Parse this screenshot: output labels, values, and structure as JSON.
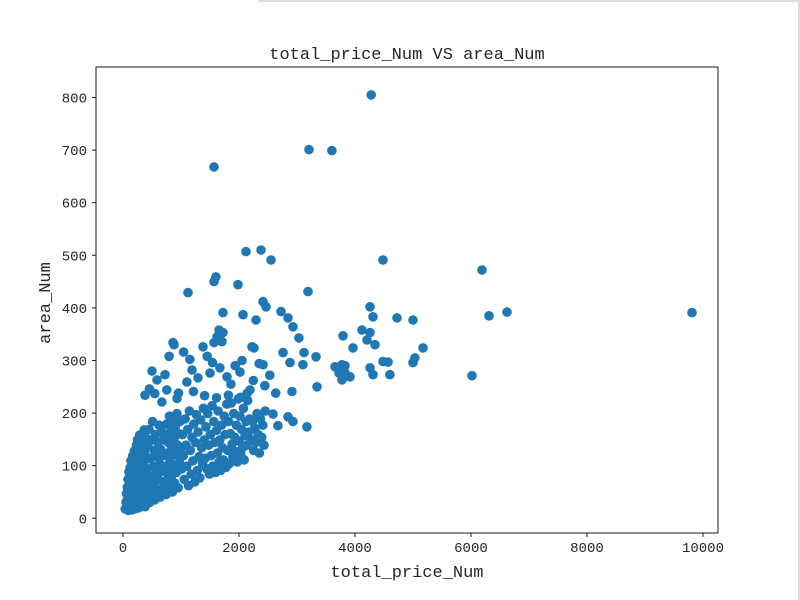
{
  "page": {
    "background": "#ffffff",
    "panel_border_color": "#dcdcdc"
  },
  "chart_data": {
    "type": "scatter",
    "title": "total_price_Num VS area_Num",
    "xlabel": "total_price_Num",
    "ylabel": "area_Num",
    "xlim": [
      -465,
      10259
    ],
    "ylim": [
      -28,
      858
    ],
    "x_ticks": [
      0,
      2000,
      4000,
      6000,
      8000,
      10000
    ],
    "y_ticks": [
      0,
      100,
      200,
      300,
      400,
      500,
      600,
      700,
      800
    ],
    "grid": false,
    "legend": "none",
    "marker_color": "#1f77b4",
    "marker_radius_px": 4.8,
    "axis_color": "#1a1a1a",
    "points": [
      [
        38,
        18
      ],
      [
        52,
        31
      ],
      [
        61,
        47
      ],
      [
        68,
        22
      ],
      [
        74,
        59
      ],
      [
        81,
        36
      ],
      [
        86,
        74
      ],
      [
        92,
        15
      ],
      [
        97,
        51
      ],
      [
        103,
        88
      ],
      [
        106,
        27
      ],
      [
        112,
        64
      ],
      [
        117,
        41
      ],
      [
        122,
        96
      ],
      [
        126,
        20
      ],
      [
        131,
        56
      ],
      [
        136,
        109
      ],
      [
        141,
        33
      ],
      [
        147,
        77
      ],
      [
        152,
        16
      ],
      [
        156,
        91
      ],
      [
        161,
        44
      ],
      [
        166,
        118
      ],
      [
        171,
        62
      ],
      [
        176,
        25
      ],
      [
        181,
        99
      ],
      [
        186,
        38
      ],
      [
        191,
        81
      ],
      [
        196,
        128
      ],
      [
        201,
        52
      ],
      [
        206,
        18
      ],
      [
        211,
        69
      ],
      [
        216,
        114
      ],
      [
        221,
        42
      ],
      [
        226,
        89
      ],
      [
        231,
        139
      ],
      [
        236,
        24
      ],
      [
        241,
        61
      ],
      [
        246,
        104
      ],
      [
        251,
        149
      ],
      [
        256,
        35
      ],
      [
        261,
        82
      ],
      [
        266,
        124
      ],
      [
        271,
        20
      ],
      [
        276,
        57
      ],
      [
        281,
        97
      ],
      [
        286,
        158
      ],
      [
        291,
        45
      ],
      [
        296,
        134
      ],
      [
        301,
        71
      ],
      [
        306,
        28
      ],
      [
        311,
        111
      ],
      [
        316,
        87
      ],
      [
        321,
        151
      ],
      [
        326,
        50
      ],
      [
        331,
        121
      ],
      [
        336,
        30
      ],
      [
        341,
        94
      ],
      [
        346,
        64
      ],
      [
        351,
        144
      ],
      [
        356,
        38
      ],
      [
        361,
        107
      ],
      [
        366,
        168
      ],
      [
        371,
        55
      ],
      [
        376,
        127
      ],
      [
        381,
        22
      ],
      [
        386,
        84
      ],
      [
        391,
        154
      ],
      [
        396,
        117
      ],
      [
        401,
        67
      ],
      [
        411,
        42
      ],
      [
        421,
        94
      ],
      [
        431,
        139
      ],
      [
        441,
        60
      ],
      [
        451,
        169
      ],
      [
        461,
        30
      ],
      [
        471,
        114
      ],
      [
        481,
        79
      ],
      [
        491,
        149
      ],
      [
        501,
        48
      ],
      [
        511,
        184
      ],
      [
        521,
        99
      ],
      [
        531,
        64
      ],
      [
        541,
        129
      ],
      [
        551,
        35
      ],
      [
        561,
        159
      ],
      [
        571,
        87
      ],
      [
        581,
        117
      ],
      [
        591,
        52
      ],
      [
        601,
        144
      ],
      [
        611,
        74
      ],
      [
        621,
        177
      ],
      [
        631,
        104
      ],
      [
        641,
        40
      ],
      [
        651,
        131
      ],
      [
        661,
        89
      ],
      [
        671,
        164
      ],
      [
        681,
        58
      ],
      [
        691,
        119
      ],
      [
        701,
        149
      ],
      [
        712,
        70
      ],
      [
        722,
        154
      ],
      [
        732,
        99
      ],
      [
        742,
        45
      ],
      [
        752,
        179
      ],
      [
        762,
        124
      ],
      [
        772,
        84
      ],
      [
        782,
        144
      ],
      [
        792,
        60
      ],
      [
        802,
        194
      ],
      [
        812,
        109
      ],
      [
        822,
        164
      ],
      [
        832,
        77
      ],
      [
        842,
        134
      ],
      [
        852,
        50
      ],
      [
        862,
        187
      ],
      [
        872,
        97
      ],
      [
        882,
        151
      ],
      [
        892,
        67
      ],
      [
        902,
        174
      ],
      [
        912,
        121
      ],
      [
        922,
        87
      ],
      [
        932,
        199
      ],
      [
        942,
        139
      ],
      [
        952,
        58
      ],
      [
        962,
        161
      ],
      [
        972,
        107
      ],
      [
        982,
        184
      ],
      [
        992,
        129
      ],
      [
        1012,
        94
      ],
      [
        1026,
        159
      ],
      [
        1041,
        119
      ],
      [
        1056,
        74
      ],
      [
        1071,
        189
      ],
      [
        1086,
        139
      ],
      [
        1101,
        99
      ],
      [
        1116,
        169
      ],
      [
        1131,
        62
      ],
      [
        1146,
        204
      ],
      [
        1161,
        129
      ],
      [
        1176,
        84
      ],
      [
        1191,
        154
      ],
      [
        1206,
        109
      ],
      [
        1221,
        179
      ],
      [
        1236,
        69
      ],
      [
        1251,
        144
      ],
      [
        1266,
        197
      ],
      [
        1281,
        91
      ],
      [
        1296,
        164
      ],
      [
        1311,
        117
      ],
      [
        1326,
        77
      ],
      [
        1341,
        187
      ],
      [
        1356,
        134
      ],
      [
        1371,
        104
      ],
      [
        1386,
        209
      ],
      [
        1401,
        149
      ],
      [
        1416,
        114
      ],
      [
        1431,
        174
      ],
      [
        1446,
        94
      ],
      [
        1461,
        199
      ],
      [
        1476,
        139
      ],
      [
        1491,
        84
      ],
      [
        1506,
        159
      ],
      [
        1521,
        119
      ],
      [
        1536,
        214
      ],
      [
        1551,
        99
      ],
      [
        1566,
        184
      ],
      [
        1581,
        144
      ],
      [
        1596,
        87
      ],
      [
        1611,
        167
      ],
      [
        1626,
        124
      ],
      [
        1641,
        204
      ],
      [
        1656,
        107
      ],
      [
        1671,
        149
      ],
      [
        1686,
        91
      ],
      [
        1701,
        177
      ],
      [
        1716,
        134
      ],
      [
        1731,
        111
      ],
      [
        1746,
        194
      ],
      [
        1761,
        159
      ],
      [
        1776,
        97
      ],
      [
        1791,
        217
      ],
      [
        1806,
        129
      ],
      [
        1821,
        184
      ],
      [
        1836,
        104
      ],
      [
        1851,
        161
      ],
      [
        1866,
        219
      ],
      [
        1881,
        141
      ],
      [
        1896,
        117
      ],
      [
        1911,
        199
      ],
      [
        1926,
        154
      ],
      [
        1941,
        127
      ],
      [
        1956,
        177
      ],
      [
        1971,
        107
      ],
      [
        1986,
        227
      ],
      [
        2001,
        147
      ],
      [
        2016,
        194
      ],
      [
        2031,
        121
      ],
      [
        2046,
        169
      ],
      [
        2061,
        134
      ],
      [
        2076,
        209
      ],
      [
        2091,
        111
      ],
      [
        2106,
        157
      ],
      [
        2121,
        184
      ],
      [
        2136,
        139
      ],
      [
        2151,
        224
      ],
      [
        2166,
        164
      ],
      [
        2181,
        189
      ],
      [
        2212,
        149
      ],
      [
        2231,
        184
      ],
      [
        2252,
        129
      ],
      [
        2271,
        171
      ],
      [
        2292,
        144
      ],
      [
        2311,
        199
      ],
      [
        2331,
        159
      ],
      [
        2352,
        124
      ],
      [
        2371,
        189
      ],
      [
        2392,
        154
      ],
      [
        2411,
        177
      ],
      [
        2432,
        139
      ],
      [
        2452,
        204
      ],
      [
        862,
        334
      ],
      [
        1621,
        345
      ],
      [
        1707,
        336
      ],
      [
        2224,
        326
      ],
      [
        2414,
        292
      ],
      [
        586,
        263
      ],
      [
        724,
        273
      ],
      [
        1190,
        282
      ],
      [
        1103,
        259
      ],
      [
        1293,
        267
      ],
      [
        1500,
        276
      ],
      [
        1672,
        286
      ],
      [
        1793,
        269
      ],
      [
        2017,
        278
      ],
      [
        2190,
        244
      ],
      [
        379,
        234
      ],
      [
        672,
        221
      ],
      [
        931,
        228
      ],
      [
        500,
        280
      ],
      [
        795,
        308
      ],
      [
        1046,
        316
      ],
      [
        1154,
        302
      ],
      [
        1452,
        308
      ],
      [
        1544,
        296
      ],
      [
        1860,
        255
      ],
      [
        1935,
        290
      ],
      [
        2052,
        300
      ],
      [
        2143,
        238
      ],
      [
        2247,
        262
      ],
      [
        2349,
        294
      ],
      [
        2446,
        252
      ],
      [
        2532,
        272
      ],
      [
        2634,
        238
      ],
      [
        455,
        246
      ],
      [
        549,
        237
      ],
      [
        756,
        244
      ],
      [
        958,
        238
      ],
      [
        1216,
        241
      ],
      [
        1408,
        233
      ],
      [
        1612,
        229
      ],
      [
        1818,
        234
      ],
      [
        2026,
        230
      ],
      [
        4280,
        805
      ],
      [
        3207,
        701
      ],
      [
        3603,
        699
      ],
      [
        1570,
        668
      ],
      [
        2121,
        507
      ],
      [
        2379,
        510
      ],
      [
        2552,
        491
      ],
      [
        4483,
        491
      ],
      [
        6190,
        472
      ],
      [
        3190,
        431
      ],
      [
        4259,
        402
      ],
      [
        4310,
        383
      ],
      [
        6310,
        385
      ],
      [
        6621,
        392
      ],
      [
        9810,
        391
      ],
      [
        1603,
        459
      ],
      [
        1569,
        450
      ],
      [
        1983,
        444
      ],
      [
        1121,
        429
      ],
      [
        2414,
        412
      ],
      [
        2466,
        402
      ],
      [
        1724,
        391
      ],
      [
        2069,
        387
      ],
      [
        2293,
        377
      ],
      [
        2724,
        393
      ],
      [
        2845,
        381
      ],
      [
        2931,
        364
      ],
      [
        1655,
        358
      ],
      [
        1724,
        353
      ],
      [
        879,
        330
      ],
      [
        1379,
        326
      ],
      [
        1569,
        334
      ],
      [
        2259,
        324
      ],
      [
        2759,
        315
      ],
      [
        3034,
        343
      ],
      [
        3121,
        315
      ],
      [
        3328,
        307
      ],
      [
        3793,
        347
      ],
      [
        4121,
        358
      ],
      [
        4259,
        353
      ],
      [
        4207,
        339
      ],
      [
        4345,
        330
      ],
      [
        3966,
        324
      ],
      [
        4724,
        381
      ],
      [
        5000,
        377
      ],
      [
        5172,
        324
      ],
      [
        5034,
        305
      ],
      [
        4259,
        286
      ],
      [
        3828,
        290
      ],
      [
        3724,
        276
      ],
      [
        3914,
        269
      ],
      [
        4569,
        297
      ],
      [
        6017,
        271
      ],
      [
        2879,
        296
      ],
      [
        3103,
        292
      ],
      [
        3655,
        288
      ],
      [
        3776,
        292
      ],
      [
        3828,
        277
      ],
      [
        3776,
        263
      ],
      [
        4310,
        273
      ],
      [
        4603,
        273
      ],
      [
        4483,
        298
      ],
      [
        5000,
        296
      ],
      [
        2914,
        241
      ],
      [
        3345,
        250
      ],
      [
        2845,
        193
      ],
      [
        2931,
        184
      ],
      [
        3172,
        174
      ],
      [
        2586,
        198
      ],
      [
        2672,
        176
      ]
    ]
  }
}
